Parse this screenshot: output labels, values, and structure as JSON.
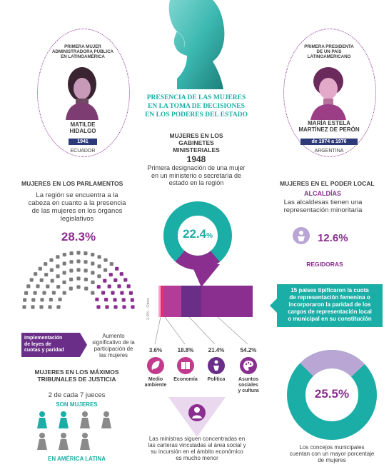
{
  "title": {
    "line1": "PRESENCIA DE LAS MUJERES",
    "line2": "EN LA TOMA DE DECISIONES",
    "line3": "EN LOS PODERES DEL ESTADO"
  },
  "left_portrait": {
    "caption_line1": "PRIMERA MUJER",
    "caption_line2": "ADMINISTRADORA PÚBLICA",
    "caption_line3": "EN LATINOAMÉRICA",
    "name_line1": "MATILDE",
    "name_line2": "HIDALGO",
    "year": "1941",
    "country": "ECUADOR"
  },
  "right_portrait": {
    "caption_line1": "PRIMERA PRESIDENTA",
    "caption_line2": "DE UN PAÍS",
    "caption_line3": "LATINOAMERICANO",
    "name_line1": "MARÍA ESTELA",
    "name_line2": "MARTÍNEZ DE PERÓN",
    "years": "de 1974 a 1976",
    "country": "ARGENTINA"
  },
  "gabinetes": {
    "heading_line1": "MUJERES EN LOS",
    "heading_line2": "GABINETES MINISTERIALES",
    "year": "1948",
    "text_line1": "Primera designación de una mujer",
    "text_line2": "en un ministerio o secretaría de",
    "text_line3": "estado en la región",
    "pct": "22.4",
    "pct_symbol": "%",
    "bar_small_label": "2.0% - Otros",
    "categories": [
      {
        "pct": "3.6%",
        "label_line1": "Medio",
        "label_line2": "ambiente",
        "label_line3": ""
      },
      {
        "pct": "18.8%",
        "label_line1": "Economía",
        "label_line2": "",
        "label_line3": ""
      },
      {
        "pct": "21.4%",
        "label_line1": "Política",
        "label_line2": "",
        "label_line3": ""
      },
      {
        "pct": "54.2%",
        "label_line1": "Asuntos",
        "label_line2": "sociales",
        "label_line3": "y cultura"
      }
    ],
    "footer_line1": "Las ministras siguen concentradas en",
    "footer_line2": "las carteras vinculadas al área social y",
    "footer_line3": "su incursión en el ámbito económico",
    "footer_line4": "es mucho menor"
  },
  "parlamentos": {
    "heading": "MUJERES EN LOS PARLAMENTOS",
    "text_line1": "La región se encuentra a la",
    "text_line2": "cabeza en cuanto a la presencia",
    "text_line3": "de las mujeres en los órganos",
    "text_line4": "legislativos",
    "pct": "28.3%",
    "tag_line1": "Implementación",
    "tag_line2": "de leyes de",
    "tag_line3": "cuotas y paridad",
    "note_line1": "Aumento",
    "note_line2": "significativo de la",
    "note_line3": "participación de",
    "note_line4": "las mujeres"
  },
  "tribunales": {
    "heading_line1": "MUJERES EN LOS MÁXIMOS",
    "heading_line2": "TRIBUNALES DE JUSTICIA",
    "text": "2 de cada 7 jueces",
    "highlight": "SON MUJERES",
    "footer": "EN AMÉRICA LATINA"
  },
  "poder_local": {
    "heading": "MUJERES EN EL PODER LOCAL",
    "alcaldias_heading": "ALCALDÍAS",
    "alcaldias_line1": "Las alcaldesas tienen una",
    "alcaldias_line2": "representación minoritaria",
    "alcaldias_pct": "12.6%",
    "regidoras_heading": "REGIDORAS",
    "box_line1": "15 países tipificaron la cuota",
    "box_line2": "de representación femenina o",
    "box_line3": "incorporaron la paridad de los",
    "box_line4": "cargos de representación local",
    "box_line5": "o municipal en su constitución",
    "regidoras_pct": "25.5%",
    "footer_line1": "Los concejos municipales",
    "footer_line2": "cuentan con un mayor porcentaje",
    "footer_line3": "de mujeres"
  },
  "colors": {
    "teal": "#1aaea6",
    "purple": "#8a2e8f",
    "magenta": "#c23a8e",
    "navy": "#2d3a7a",
    "lilac": "#b9a6d4"
  },
  "icons": [
    "woman-silhouette-icon",
    "leaf-icon",
    "book-icon",
    "podium-icon",
    "palette-icon",
    "judge-figure-icon"
  ]
}
